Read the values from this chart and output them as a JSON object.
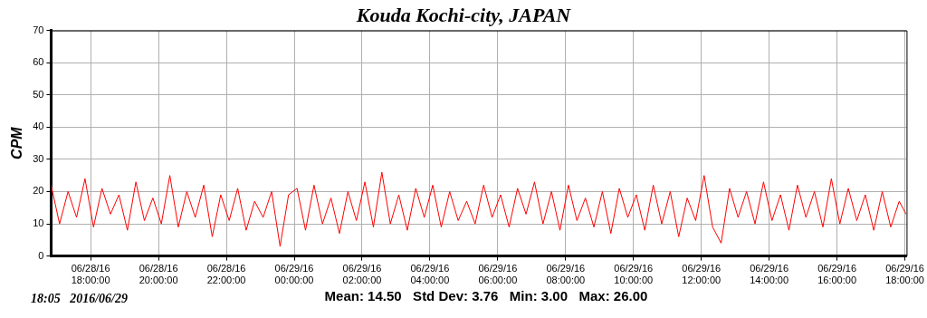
{
  "chart_data": {
    "type": "line",
    "title": "Kouda Kochi-city, JAPAN",
    "ylabel": "CPM",
    "annotations": [
      "18:05   2016/06/29",
      "Mean: 14.50   Std Dev: 3.76   Min: 3.00   Max: 26.00"
    ],
    "x": [
      "2016-06-28T16:50",
      "2016-06-28T17:05",
      "2016-06-28T17:20",
      "2016-06-28T17:35",
      "2016-06-28T17:50",
      "2016-06-28T18:05",
      "2016-06-28T18:20",
      "2016-06-28T18:35",
      "2016-06-28T18:50",
      "2016-06-28T19:05",
      "2016-06-28T19:20",
      "2016-06-28T19:35",
      "2016-06-28T19:50",
      "2016-06-28T20:05",
      "2016-06-28T20:20",
      "2016-06-28T20:35",
      "2016-06-28T20:50",
      "2016-06-28T21:05",
      "2016-06-28T21:20",
      "2016-06-28T21:35",
      "2016-06-28T21:50",
      "2016-06-28T22:05",
      "2016-06-28T22:20",
      "2016-06-28T22:35",
      "2016-06-28T22:50",
      "2016-06-28T23:05",
      "2016-06-28T23:20",
      "2016-06-28T23:35",
      "2016-06-28T23:50",
      "2016-06-29T00:05",
      "2016-06-29T00:20",
      "2016-06-29T00:35",
      "2016-06-29T00:50",
      "2016-06-29T01:05",
      "2016-06-29T01:20",
      "2016-06-29T01:35",
      "2016-06-29T01:50",
      "2016-06-29T02:05",
      "2016-06-29T02:20",
      "2016-06-29T02:35",
      "2016-06-29T02:50",
      "2016-06-29T03:05",
      "2016-06-29T03:20",
      "2016-06-29T03:35",
      "2016-06-29T03:50",
      "2016-06-29T04:05",
      "2016-06-29T04:20",
      "2016-06-29T04:35",
      "2016-06-29T04:50",
      "2016-06-29T05:05",
      "2016-06-29T05:20",
      "2016-06-29T05:35",
      "2016-06-29T05:50",
      "2016-06-29T06:05",
      "2016-06-29T06:20",
      "2016-06-29T06:35",
      "2016-06-29T06:50",
      "2016-06-29T07:05",
      "2016-06-29T07:20",
      "2016-06-29T07:35",
      "2016-06-29T07:50",
      "2016-06-29T08:05",
      "2016-06-29T08:20",
      "2016-06-29T08:35",
      "2016-06-29T08:50",
      "2016-06-29T09:05",
      "2016-06-29T09:20",
      "2016-06-29T09:35",
      "2016-06-29T09:50",
      "2016-06-29T10:05",
      "2016-06-29T10:20",
      "2016-06-29T10:35",
      "2016-06-29T10:50",
      "2016-06-29T11:05",
      "2016-06-29T11:20",
      "2016-06-29T11:35",
      "2016-06-29T11:50",
      "2016-06-29T12:05",
      "2016-06-29T12:20",
      "2016-06-29T12:35",
      "2016-06-29T12:50",
      "2016-06-29T13:05",
      "2016-06-29T13:20",
      "2016-06-29T13:35",
      "2016-06-29T13:50",
      "2016-06-29T14:05",
      "2016-06-29T14:20",
      "2016-06-29T14:35",
      "2016-06-29T14:50",
      "2016-06-29T15:05",
      "2016-06-29T15:20",
      "2016-06-29T15:35",
      "2016-06-29T15:50",
      "2016-06-29T16:05",
      "2016-06-29T16:20",
      "2016-06-29T16:35",
      "2016-06-29T16:50",
      "2016-06-29T17:05",
      "2016-06-29T17:20",
      "2016-06-29T17:35",
      "2016-06-29T17:50",
      "2016-06-29T18:02"
    ],
    "series": [
      {
        "color": "#ff0000",
        "values": [
          22,
          10,
          20,
          12,
          24,
          9,
          21,
          13,
          19,
          8,
          23,
          11,
          18,
          10,
          25,
          9,
          20,
          12,
          22,
          6,
          19,
          11,
          21,
          8,
          17,
          12,
          20,
          3,
          19,
          21,
          8,
          22,
          10,
          18,
          7,
          20,
          11,
          23,
          9,
          26,
          10,
          19,
          8,
          21,
          12,
          22,
          9,
          20,
          11,
          17,
          10,
          22,
          12,
          19,
          9,
          21,
          13,
          23,
          10,
          20,
          8,
          22,
          11,
          18,
          9,
          20,
          7,
          21,
          12,
          19,
          8,
          22,
          10,
          20,
          6,
          18,
          11,
          25,
          9,
          4,
          21,
          12,
          20,
          10,
          23,
          11,
          19,
          8,
          22,
          12,
          20,
          9,
          24,
          10,
          21,
          11,
          19,
          8,
          20,
          9,
          17,
          13
        ]
      }
    ],
    "xlim": [
      "2016-06-28T16:50",
      "2016-06-29T18:03"
    ],
    "xticks": [
      {
        "value": "2016-06-28T18:00",
        "label": "06/28/16 18:00:00"
      },
      {
        "value": "2016-06-28T20:00",
        "label": "06/28/16 20:00:00"
      },
      {
        "value": "2016-06-28T22:00",
        "label": "06/28/16 22:00:00"
      },
      {
        "value": "2016-06-29T00:00",
        "label": "06/29/16 00:00:00"
      },
      {
        "value": "2016-06-29T02:00",
        "label": "06/29/16 02:00:00"
      },
      {
        "value": "2016-06-29T04:00",
        "label": "06/29/16 04:00:00"
      },
      {
        "value": "2016-06-29T06:00",
        "label": "06/29/16 06:00:00"
      },
      {
        "value": "2016-06-29T08:00",
        "label": "06/29/16 08:00:00"
      },
      {
        "value": "2016-06-29T10:00",
        "label": "06/29/16 10:00:00"
      },
      {
        "value": "2016-06-29T12:00",
        "label": "06/29/16 12:00:00"
      },
      {
        "value": "2016-06-29T14:00",
        "label": "06/29/16 14:00:00"
      },
      {
        "value": "2016-06-29T16:00",
        "label": "06/29/16 16:00:00"
      },
      {
        "value": "2016-06-29T18:00",
        "label": "06/29/16 18:00:00"
      }
    ],
    "ylim": [
      0,
      70
    ],
    "yticks": [
      0,
      10,
      20,
      30,
      40,
      50,
      60,
      70
    ],
    "grid": true,
    "marker": "none",
    "line_style": "solid"
  }
}
